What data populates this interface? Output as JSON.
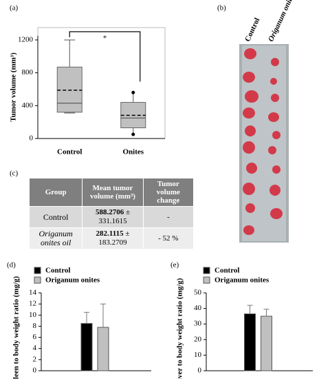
{
  "chart_data": [
    {
      "type": "box",
      "panel": "(a)",
      "ylabel": "Tumor volume (mm³)",
      "annotation": "*",
      "categories": [
        "Control",
        "Onites"
      ],
      "color": "#c0c0c0",
      "boxes": [
        {
          "min": 310,
          "q1": 320,
          "median": 430,
          "mean": 588,
          "q3": 870,
          "max": 1200
        },
        {
          "min": 50,
          "q1": 130,
          "median": 250,
          "mean": 282,
          "q3": 440,
          "max": 560
        }
      ],
      "ylim": [
        0,
        1250
      ],
      "yticks": [
        0,
        400,
        800,
        1200
      ]
    },
    {
      "type": "bar",
      "panel": "(d)",
      "ylabel": "Spleen to body weight ratio (mg/g)",
      "categories": [
        null
      ],
      "series": [
        {
          "name": "Control",
          "color": "#000000",
          "values": [
            8.5
          ],
          "errors": [
            2.0
          ]
        },
        {
          "name": "Origanum onites",
          "color": "#c0c0c0",
          "values": [
            7.8
          ],
          "errors": [
            4.2
          ]
        }
      ],
      "ylim": [
        0,
        14
      ],
      "yticks": [
        0,
        2,
        4,
        6,
        8,
        10,
        12,
        14
      ]
    },
    {
      "type": "bar",
      "panel": "(e)",
      "ylabel": "Liver to body weight ratio (mg/g)",
      "categories": [
        null
      ],
      "series": [
        {
          "name": "Control",
          "color": "#000000",
          "values": [
            36.5
          ],
          "errors": [
            5.5
          ]
        },
        {
          "name": "Origanum onites",
          "color": "#c0c0c0",
          "values": [
            35
          ],
          "errors": [
            4.5
          ]
        }
      ],
      "ylim": [
        0,
        50
      ],
      "yticks": [
        0,
        10,
        20,
        30,
        40,
        50
      ]
    }
  ],
  "photo": {
    "panel": "(b)",
    "labels": [
      "Control",
      "Origanum onites"
    ]
  },
  "table": {
    "panel": "(c)",
    "header": [
      "Group",
      "Mean tumor volume (mm³)",
      "Tumor volume change"
    ],
    "rows": [
      {
        "group": "Control",
        "mean": "588.2706",
        "sd": "± 331.1615",
        "change": "-"
      },
      {
        "group": "Origanum onites oil",
        "mean": "282.1115",
        "sd": "± 183.2709",
        "change": "- 52 %"
      }
    ]
  }
}
